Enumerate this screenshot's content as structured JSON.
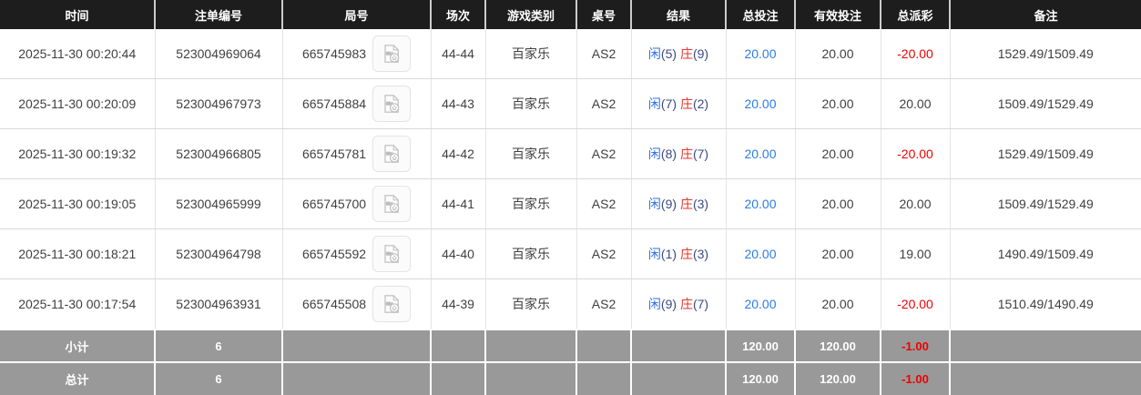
{
  "colors": {
    "header_bg": "#1d1d1d",
    "accent_blue": "#2b7ce9",
    "player_blue": "#2f6fe4",
    "banker_red": "#e8332a",
    "negative_red": "#ee0000",
    "footer_bg": "#999999"
  },
  "table": {
    "columns": [
      {
        "key": "time",
        "label": "时间"
      },
      {
        "key": "bet_id",
        "label": "注单编号"
      },
      {
        "key": "round_id",
        "label": "局号"
      },
      {
        "key": "session",
        "label": "场次"
      },
      {
        "key": "game_type",
        "label": "游戏类别"
      },
      {
        "key": "table_no",
        "label": "桌号"
      },
      {
        "key": "result",
        "label": "结果"
      },
      {
        "key": "total_bet",
        "label": "总投注"
      },
      {
        "key": "valid_bet",
        "label": "有效投注"
      },
      {
        "key": "payout",
        "label": "总派彩"
      },
      {
        "key": "remark",
        "label": "备注"
      }
    ],
    "rows": [
      {
        "time": "2025-11-30 00:20:44",
        "bet_id": "523004969064",
        "round_id": "665745983",
        "video_icon": "video-record-icon",
        "session": "44-44",
        "game_type": "百家乐",
        "table_no": "AS2",
        "result": {
          "player_label": "闲",
          "player_score": "(5)",
          "banker_label": "庄",
          "banker_score": "(9)"
        },
        "total_bet": "20.00",
        "valid_bet": "20.00",
        "payout": "-20.00",
        "remark": "1529.49/1509.49"
      },
      {
        "time": "2025-11-30 00:20:09",
        "bet_id": "523004967973",
        "round_id": "665745884",
        "video_icon": "video-record-icon",
        "session": "44-43",
        "game_type": "百家乐",
        "table_no": "AS2",
        "result": {
          "player_label": "闲",
          "player_score": "(7)",
          "banker_label": "庄",
          "banker_score": "(2)"
        },
        "total_bet": "20.00",
        "valid_bet": "20.00",
        "payout": "20.00",
        "remark": "1509.49/1529.49"
      },
      {
        "time": "2025-11-30 00:19:32",
        "bet_id": "523004966805",
        "round_id": "665745781",
        "video_icon": "video-record-icon",
        "session": "44-42",
        "game_type": "百家乐",
        "table_no": "AS2",
        "result": {
          "player_label": "闲",
          "player_score": "(8)",
          "banker_label": "庄",
          "banker_score": "(7)"
        },
        "total_bet": "20.00",
        "valid_bet": "20.00",
        "payout": "-20.00",
        "remark": "1529.49/1509.49"
      },
      {
        "time": "2025-11-30 00:19:05",
        "bet_id": "523004965999",
        "round_id": "665745700",
        "video_icon": "video-record-icon",
        "session": "44-41",
        "game_type": "百家乐",
        "table_no": "AS2",
        "result": {
          "player_label": "闲",
          "player_score": "(9)",
          "banker_label": "庄",
          "banker_score": "(3)"
        },
        "total_bet": "20.00",
        "valid_bet": "20.00",
        "payout": "20.00",
        "remark": "1509.49/1529.49"
      },
      {
        "time": "2025-11-30 00:18:21",
        "bet_id": "523004964798",
        "round_id": "665745592",
        "video_icon": "video-record-icon",
        "session": "44-40",
        "game_type": "百家乐",
        "table_no": "AS2",
        "result": {
          "player_label": "闲",
          "player_score": "(1)",
          "banker_label": "庄",
          "banker_score": "(3)"
        },
        "total_bet": "20.00",
        "valid_bet": "20.00",
        "payout": "19.00",
        "remark": "1490.49/1509.49"
      },
      {
        "time": "2025-11-30 00:17:54",
        "bet_id": "523004963931",
        "round_id": "665745508",
        "video_icon": "video-record-icon",
        "session": "44-39",
        "game_type": "百家乐",
        "table_no": "AS2",
        "result": {
          "player_label": "闲",
          "player_score": "(9)",
          "banker_label": "庄",
          "banker_score": "(7)"
        },
        "total_bet": "20.00",
        "valid_bet": "20.00",
        "payout": "-20.00",
        "remark": "1510.49/1490.49"
      }
    ],
    "footer_rows": [
      {
        "label": "小计",
        "count": "6",
        "total_bet": "120.00",
        "valid_bet": "120.00",
        "payout": "-1.00",
        "remark": ""
      },
      {
        "label": "总计",
        "count": "6",
        "total_bet": "120.00",
        "valid_bet": "120.00",
        "payout": "-1.00",
        "remark": ""
      }
    ]
  }
}
